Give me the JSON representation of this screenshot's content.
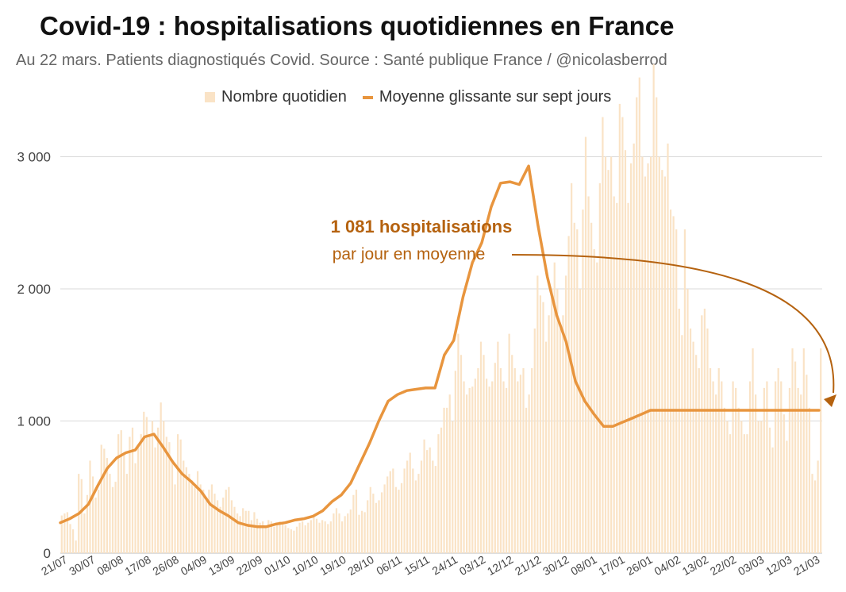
{
  "header": {
    "title": "Covid-19 : hospitalisations quotidiennes en France",
    "subtitle": "Au 22 mars. Patients diagnostiqués Covid. Source : Santé publique France / @nicolasberrod"
  },
  "colors": {
    "bars": "#fae3c6",
    "line": "#e8953e",
    "annotation": "#b5620f",
    "grid": "#d9d9d9"
  },
  "chart_data": {
    "type": "bar",
    "title": "Covid-19 : hospitalisations quotidiennes en France",
    "subtitle": "Au 22 mars. Patients diagnostiqués Covid. Source : Santé publique France / @nicolasberrod",
    "xlabel": "",
    "ylabel": "",
    "ylim": [
      0,
      3300
    ],
    "yticks": [
      0,
      1000,
      2000,
      3000
    ],
    "ytick_labels": [
      "0",
      "1 000",
      "2 000",
      "3 000"
    ],
    "grid": true,
    "legend_position": "top-center",
    "x_tick_labels": [
      "21/07",
      "30/07",
      "08/08",
      "17/08",
      "26/08",
      "04/09",
      "13/09",
      "22/09",
      "01/10",
      "10/10",
      "19/10",
      "28/10",
      "06/11",
      "15/11",
      "24/11",
      "03/12",
      "12/12",
      "21/12",
      "30/12",
      "08/01",
      "17/01",
      "26/01",
      "04/02",
      "13/02",
      "22/02",
      "03/03",
      "12/03",
      "21/03"
    ],
    "series": [
      {
        "name": "Nombre quotidien",
        "type": "bar",
        "values": [
          285,
          300,
          310,
          220,
          180,
          95,
          600,
          560,
          300,
          440,
          700,
          580,
          420,
          480,
          820,
          790,
          720,
          600,
          500,
          540,
          900,
          930,
          760,
          600,
          880,
          950,
          680,
          820,
          900,
          1070,
          1030,
          900,
          1000,
          800,
          950,
          1140,
          1000,
          880,
          840,
          700,
          520,
          900,
          860,
          700,
          650,
          600,
          550,
          500,
          620,
          520,
          480,
          400,
          480,
          520,
          450,
          400,
          350,
          420,
          480,
          500,
          400,
          350,
          300,
          280,
          340,
          320,
          320,
          250,
          310,
          260,
          230,
          240,
          200,
          250,
          240,
          200,
          230,
          240,
          220,
          210,
          190,
          180,
          170,
          200,
          230,
          240,
          210,
          230,
          250,
          280,
          260,
          230,
          250,
          240,
          220,
          240,
          300,
          340,
          300,
          240,
          280,
          300,
          330,
          440,
          480,
          290,
          320,
          310,
          400,
          500,
          450,
          380,
          400,
          460,
          520,
          580,
          620,
          640,
          500,
          480,
          530,
          640,
          700,
          760,
          640,
          550,
          600,
          700,
          860,
          780,
          800,
          700,
          660,
          900,
          950,
          1100,
          1100,
          1200,
          1000,
          1380,
          1660,
          1500,
          1300,
          1200,
          1250,
          1260,
          1320,
          1400,
          1600,
          1500,
          1320,
          1260,
          1300,
          1440,
          1600,
          1400,
          1300,
          1250,
          1660,
          1500,
          1400,
          1300,
          1350,
          1400,
          1100,
          1200,
          1400,
          1700,
          2100,
          1950,
          1900,
          1600,
          1800,
          2000,
          2200,
          2000,
          1700,
          1800,
          2100,
          2400,
          2800,
          2500,
          2450,
          2000,
          2600,
          3150,
          2700,
          2500,
          2300,
          2200,
          2800,
          3300,
          3000,
          2900,
          3000,
          2700,
          2650,
          3400,
          3300,
          3050,
          2650,
          2950,
          3100,
          3450,
          3600,
          3000,
          2850,
          2950,
          3000,
          3700,
          3450,
          3000,
          2900,
          2850,
          3100,
          2600,
          2550,
          2450,
          1850,
          1650,
          2450,
          2000,
          1700,
          1600,
          1500,
          1400,
          1800,
          1850,
          1700,
          1400,
          1300,
          1200,
          1400,
          1300,
          1100,
          1000,
          900,
          1300,
          1250,
          1100,
          1000,
          900,
          900,
          1300,
          1550,
          1200,
          1000,
          1000,
          1250,
          1300,
          950,
          800,
          1300,
          1400,
          1300,
          1050,
          850,
          1250,
          1550,
          1450,
          1250,
          1200,
          1550,
          1350,
          1100,
          600,
          550,
          700,
          1550
        ]
      },
      {
        "name": "Moyenne glissante sur sept jours",
        "type": "line",
        "x": [
          0,
          3,
          6,
          9,
          12,
          15,
          18,
          21,
          24,
          27,
          30,
          33,
          36,
          39,
          42,
          45,
          48,
          51,
          54,
          57,
          60,
          63,
          66,
          69,
          72,
          75,
          78,
          81,
          84,
          87,
          90,
          93,
          96,
          99,
          102,
          105,
          108,
          111,
          114,
          117,
          120,
          123,
          126,
          129,
          132,
          135,
          138,
          141,
          144,
          147,
          150,
          153,
          156,
          159,
          162,
          165,
          168,
          171,
          174,
          177,
          180,
          183,
          186,
          189,
          192,
          195,
          198,
          201,
          204,
          207,
          210,
          213,
          216,
          219,
          222,
          225,
          228,
          231,
          234,
          237,
          240,
          243
        ],
        "values": [
          230,
          260,
          300,
          370,
          510,
          640,
          720,
          760,
          780,
          880,
          900,
          800,
          690,
          600,
          540,
          470,
          370,
          320,
          280,
          230,
          210,
          200,
          200,
          220,
          230,
          250,
          260,
          280,
          320,
          390,
          440,
          530,
          680,
          830,
          1000,
          1150,
          1200,
          1230,
          1240,
          1250,
          1250,
          1500,
          1610,
          1940,
          2200,
          2350,
          2620,
          2800,
          2810,
          2790,
          2930,
          2480,
          2090,
          1800,
          1600,
          1300,
          1150,
          1050,
          960,
          960,
          990,
          1020,
          1050,
          1081,
          1081,
          1081,
          1081,
          1081,
          1081,
          1081,
          1081,
          1081,
          1081,
          1081,
          1081,
          1081,
          1081,
          1081,
          1081,
          1081,
          1081,
          1081
        ]
      }
    ],
    "annotations": [
      {
        "text_bold": "1 081 hospitalisations",
        "text": "par jour en moyenne",
        "value": 1081
      }
    ]
  }
}
